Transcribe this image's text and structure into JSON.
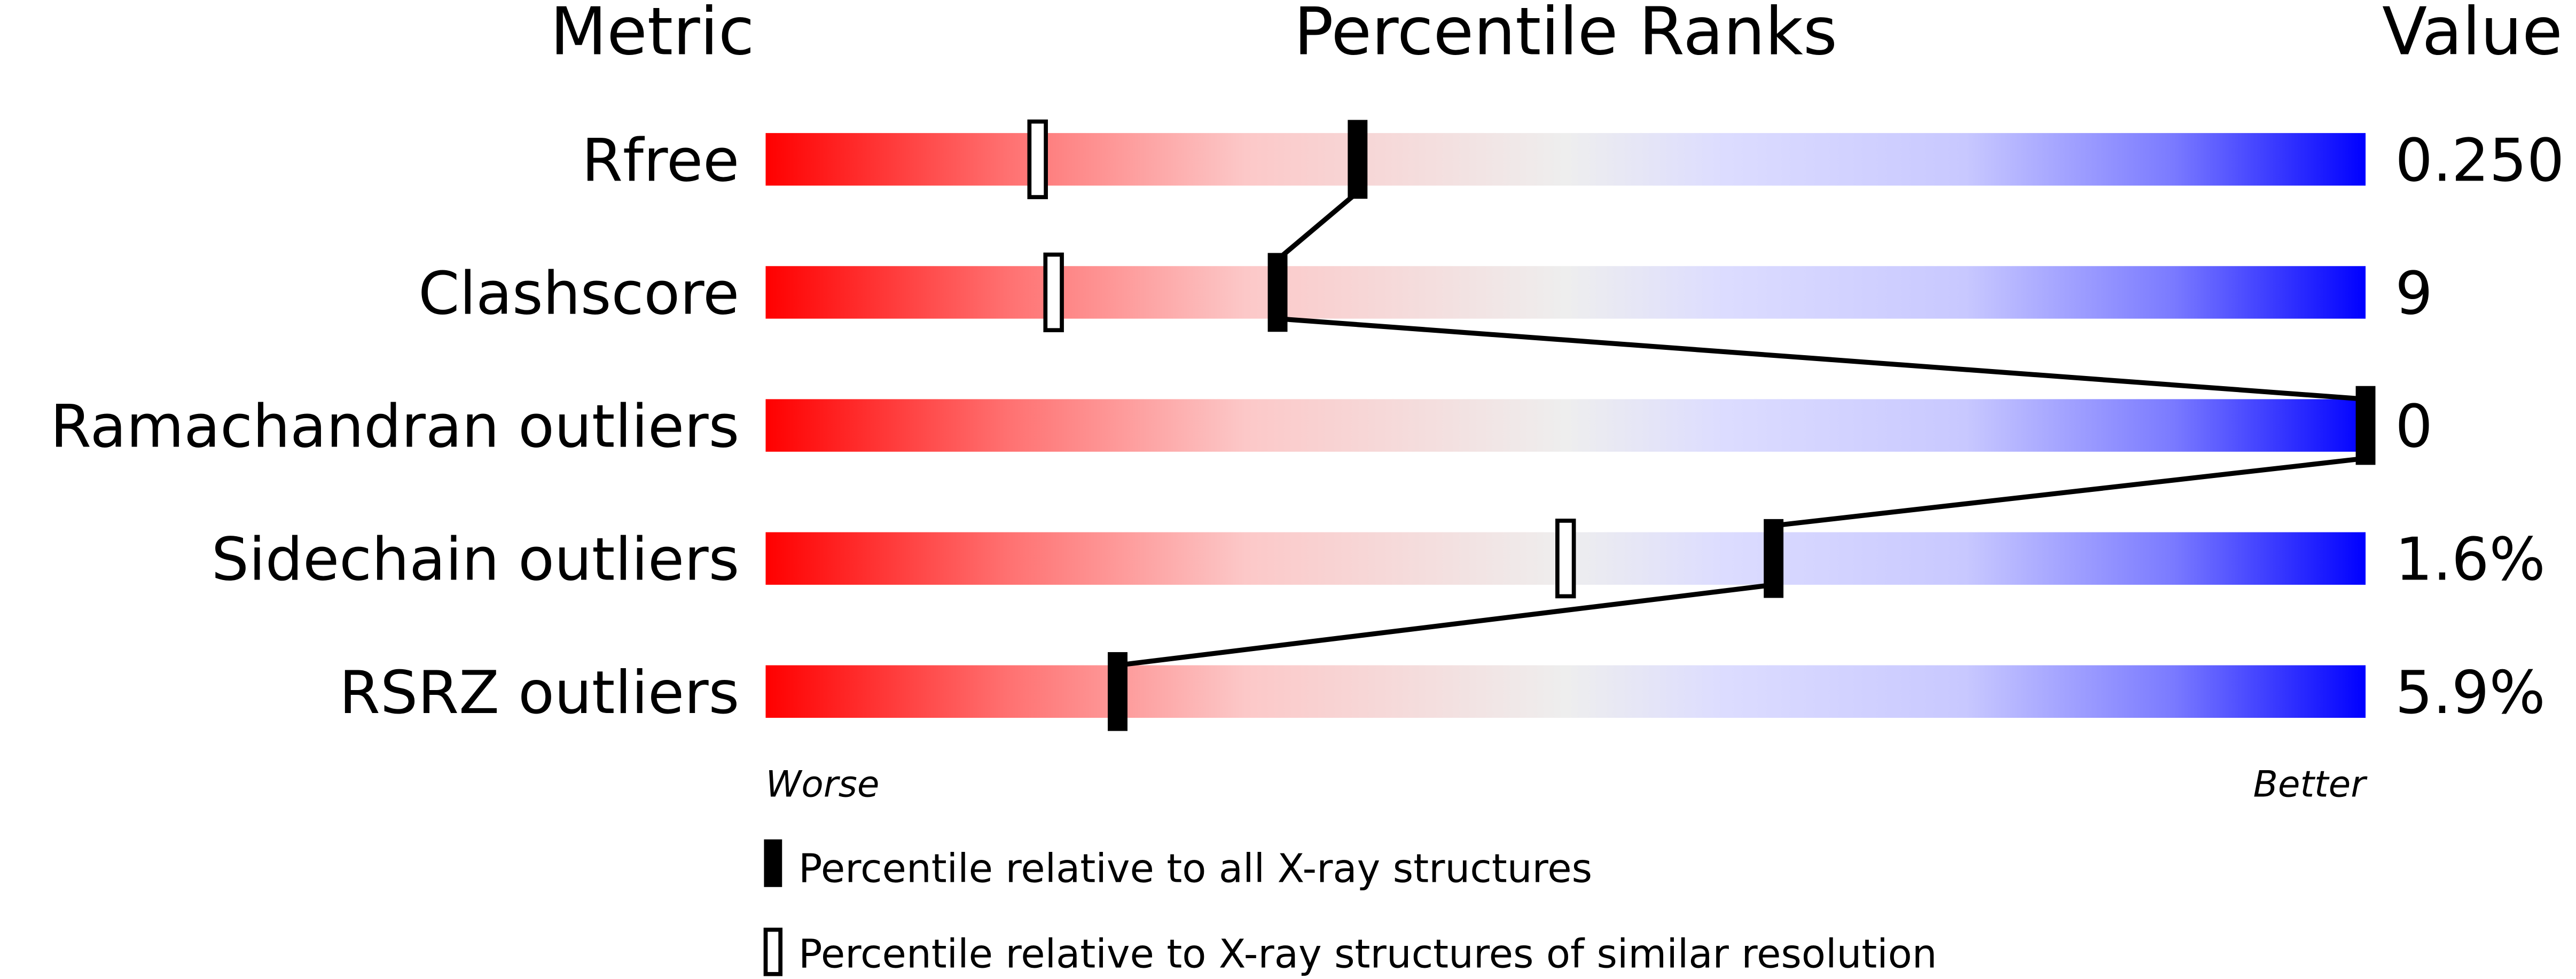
{
  "chart_data": {
    "type": "bar",
    "headers": {
      "metric": "Metric",
      "percentile": "Percentile Ranks",
      "value": "Value"
    },
    "xlim": [
      0,
      100
    ],
    "axis_labels": {
      "left": "Worse",
      "right": "Better"
    },
    "gradient_colors": [
      "#ff0000",
      "#f0f0f0",
      "#0000ff"
    ],
    "metrics": [
      {
        "name": "Rfree",
        "value": "0.250",
        "percentile_all": 37,
        "percentile_similar": 17
      },
      {
        "name": "Clashscore",
        "value": "9",
        "percentile_all": 32,
        "percentile_similar": 18
      },
      {
        "name": "Ramachandran outliers",
        "value": "0",
        "percentile_all": 100,
        "percentile_similar": 100
      },
      {
        "name": "Sidechain outliers",
        "value": "1.6%",
        "percentile_all": 63,
        "percentile_similar": 50
      },
      {
        "name": "RSRZ outliers",
        "value": "5.9%",
        "percentile_all": 22,
        "percentile_similar": null
      }
    ],
    "legend": [
      {
        "marker": "filled",
        "label": "Percentile relative to all X-ray structures"
      },
      {
        "marker": "open",
        "label": "Percentile relative to X-ray structures of similar resolution"
      }
    ]
  }
}
